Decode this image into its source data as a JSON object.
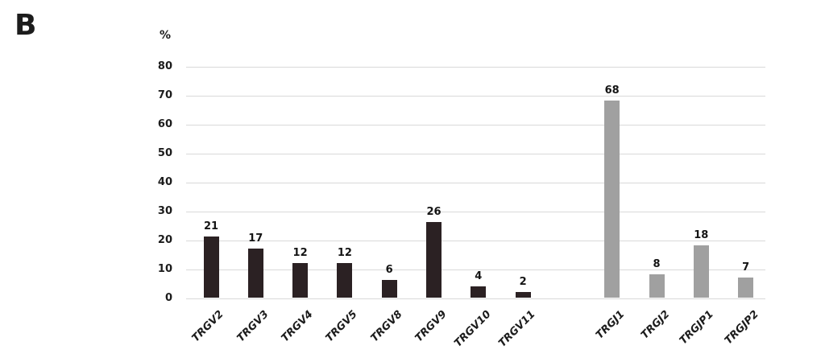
{
  "panel_label": "B",
  "chart_data": {
    "type": "bar",
    "title": "",
    "unit_label": "%",
    "xlabel": "",
    "ylabel": "%",
    "ylim": [
      0,
      80
    ],
    "yticks": [
      0,
      10,
      20,
      30,
      40,
      50,
      60,
      70,
      80
    ],
    "grid": true,
    "legend": false,
    "bar_labels_shown": true,
    "colors": {
      "dark": "#2b2123",
      "gray": "#a0a0a0",
      "spacer": "transparent"
    },
    "bars": [
      {
        "label": "TRGV2",
        "value": 21,
        "group": "dark"
      },
      {
        "label": "TRGV3",
        "value": 17,
        "group": "dark"
      },
      {
        "label": "TRGV4",
        "value": 12,
        "group": "dark"
      },
      {
        "label": "TRGV5",
        "value": 12,
        "group": "dark"
      },
      {
        "label": "TRGV8",
        "value": 6,
        "group": "dark"
      },
      {
        "label": "TRGV9",
        "value": 26,
        "group": "dark"
      },
      {
        "label": "TRGV10",
        "value": 4,
        "group": "dark"
      },
      {
        "label": "TRGV11",
        "value": 2,
        "group": "dark"
      },
      {
        "label": "",
        "value": null,
        "group": "spacer"
      },
      {
        "label": "TRGJ1",
        "value": 68,
        "group": "gray"
      },
      {
        "label": "TRGJ2",
        "value": 8,
        "group": "gray"
      },
      {
        "label": "TRGJP1",
        "value": 18,
        "group": "gray"
      },
      {
        "label": "TRGJP2",
        "value": 7,
        "group": "gray"
      }
    ],
    "series": [
      {
        "name": "TRGV (dark bars)",
        "categories": [
          "TRGV2",
          "TRGV3",
          "TRGV4",
          "TRGV5",
          "TRGV8",
          "TRGV9",
          "TRGV10",
          "TRGV11"
        ],
        "values": [
          21,
          17,
          12,
          12,
          6,
          26,
          4,
          2
        ]
      },
      {
        "name": "TRGJ (gray bars)",
        "categories": [
          "TRGJ1",
          "TRGJ2",
          "TRGJP1",
          "TRGJP2"
        ],
        "values": [
          68,
          8,
          18,
          7
        ]
      }
    ]
  }
}
